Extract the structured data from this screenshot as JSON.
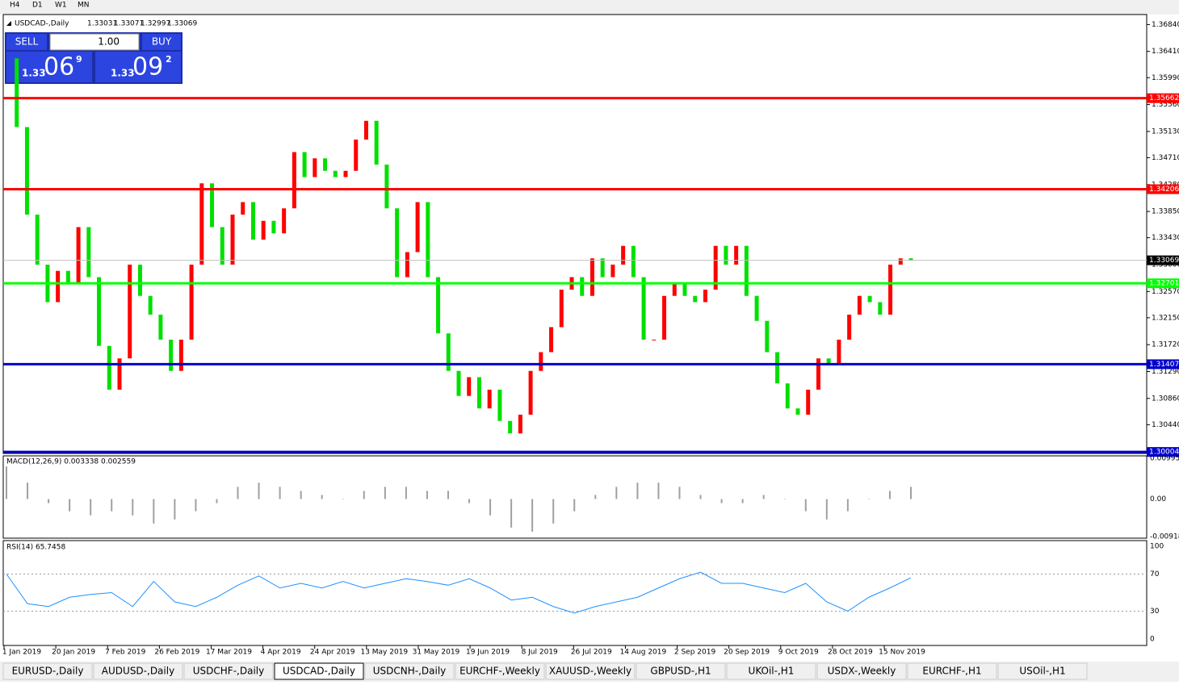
{
  "toolbar": {
    "timeframes": [
      "H4",
      "D1",
      "W1",
      "MN"
    ]
  },
  "trade_panel": {
    "sell": "SELL",
    "buy": "BUY",
    "lot": "1.00",
    "bid": {
      "big": "1.33",
      "pips": "06",
      "frac": "9"
    },
    "ask": {
      "big": "1.33",
      "pips": "09",
      "frac": "2"
    }
  },
  "chart_data": {
    "type": "candlestick",
    "symbol": "USDCAD-,Daily",
    "ohlc_header": [
      "1.33031",
      "1.33071",
      "1.32997",
      "1.33069"
    ],
    "closes": [
      1.363,
      1.352,
      1.338,
      1.33,
      1.324,
      1.329,
      1.327,
      1.336,
      1.328,
      1.317,
      1.31,
      1.315,
      1.33,
      1.325,
      1.322,
      1.318,
      1.313,
      1.318,
      1.33,
      1.343,
      1.336,
      1.33,
      1.338,
      1.34,
      1.334,
      1.337,
      1.335,
      1.339,
      1.348,
      1.344,
      1.347,
      1.345,
      1.344,
      1.345,
      1.35,
      1.353,
      1.346,
      1.339,
      1.328,
      1.332,
      1.34,
      1.328,
      1.319,
      1.313,
      1.309,
      1.312,
      1.307,
      1.31,
      1.305,
      1.303,
      1.306,
      1.313,
      1.316,
      1.32,
      1.326,
      1.328,
      1.325,
      1.331,
      1.328,
      1.33,
      1.333,
      1.328,
      1.318,
      1.318,
      1.325,
      1.327,
      1.325,
      1.324,
      1.326,
      1.333,
      1.33,
      1.333,
      1.325,
      1.321,
      1.316,
      1.311,
      1.307,
      1.306,
      1.31,
      1.315,
      1.314,
      1.318,
      1.322,
      1.325,
      1.324,
      1.322,
      1.33,
      1.331,
      1.33069
    ],
    "up_color": "#ff0000",
    "down_color": "#00e000",
    "ylim": [
      1.2998,
      1.37
    ],
    "yticks": [
      {
        "value": 1.3684,
        "label": "1.36840"
      },
      {
        "value": 1.3641,
        "label": "1.36410"
      },
      {
        "value": 1.3599,
        "label": "1.35990"
      },
      {
        "value": 1.3556,
        "label": "1.35560"
      },
      {
        "value": 1.3513,
        "label": "1.35130"
      },
      {
        "value": 1.3471,
        "label": "1.34710"
      },
      {
        "value": 1.3428,
        "label": "1.34280"
      },
      {
        "value": 1.3385,
        "label": "1.33850"
      },
      {
        "value": 1.3343,
        "label": "1.33430"
      },
      {
        "value": 1.33,
        "label": "1.33000"
      },
      {
        "value": 1.3257,
        "label": "1.32570"
      },
      {
        "value": 1.3215,
        "label": "1.32150"
      },
      {
        "value": 1.3172,
        "label": "1.31720"
      },
      {
        "value": 1.3129,
        "label": "1.31290"
      },
      {
        "value": 1.3086,
        "label": "1.30860"
      },
      {
        "value": 1.3044,
        "label": "1.30440"
      }
    ],
    "levels": [
      {
        "value": 1.35662,
        "color": "#ff0000"
      },
      {
        "value": 1.34206,
        "color": "#ff0000"
      },
      {
        "value": 1.32701,
        "color": "#00ff00"
      },
      {
        "value": 1.31407,
        "color": "#0000cc"
      },
      {
        "value": 1.30004,
        "color": "#0000cc"
      }
    ],
    "current_price": 1.33069,
    "dates": [
      "1 Jan 2019",
      "20 Jan 2019",
      "7 Feb 2019",
      "26 Feb 2019",
      "17 Mar 2019",
      "4 Apr 2019",
      "24 Apr 2019",
      "13 May 2019",
      "31 May 2019",
      "19 Jun 2019",
      "8 Jul 2019",
      "26 Jul 2019",
      "14 Aug 2019",
      "2 Sep 2019",
      "20 Sep 2019",
      "9 Oct 2019",
      "28 Oct 2019",
      "15 Nov 2019"
    ]
  },
  "macd": {
    "title": "MACD(12,26,9) 0.003338 0.002559",
    "values": [
      0.008,
      0.004,
      -0.001,
      -0.003,
      -0.004,
      -0.003,
      -0.004,
      -0.006,
      -0.005,
      -0.003,
      -0.001,
      0.003,
      0.004,
      0.003,
      0.002,
      0.001,
      0.0,
      0.002,
      0.003,
      0.003,
      0.002,
      0.002,
      -0.001,
      -0.004,
      -0.007,
      -0.008,
      -0.006,
      -0.003,
      0.001,
      0.003,
      0.004,
      0.004,
      0.003,
      0.001,
      -0.001,
      -0.001,
      0.001,
      0.0,
      -0.003,
      -0.005,
      -0.003,
      0.0,
      0.002,
      0.003
    ],
    "ylim": [
      -0.0092,
      0.0102
    ],
    "yticks": [
      {
        "value": 0.009957,
        "label": "0.009957"
      },
      {
        "value": 0,
        "label": "0.00"
      },
      {
        "value": -0.009186,
        "label": "-0.009186"
      }
    ]
  },
  "rsi": {
    "title": "RSI(14) 65.7458",
    "values": [
      70,
      38,
      35,
      45,
      48,
      50,
      35,
      62,
      40,
      35,
      45,
      58,
      68,
      55,
      60,
      55,
      62,
      55,
      60,
      65,
      62,
      58,
      65,
      55,
      42,
      45,
      35,
      28,
      35,
      40,
      45,
      55,
      65,
      72,
      60,
      60,
      55,
      50,
      60,
      40,
      30,
      45,
      55,
      66
    ],
    "ylim": [
      0,
      100
    ],
    "yticks": [
      100,
      70,
      30,
      0
    ]
  },
  "tabs": [
    "EURUSD-,Daily",
    "AUDUSD-,Daily",
    "USDCHF-,Daily",
    "USDCAD-,Daily",
    "USDCNH-,Daily",
    "EURCHF-,Weekly",
    "XAUUSD-,Weekly",
    "GBPUSD-,H1",
    "UKOil-,H1",
    "USDX-,Weekly",
    "EURCHF-,H1",
    "USOil-,H1"
  ]
}
